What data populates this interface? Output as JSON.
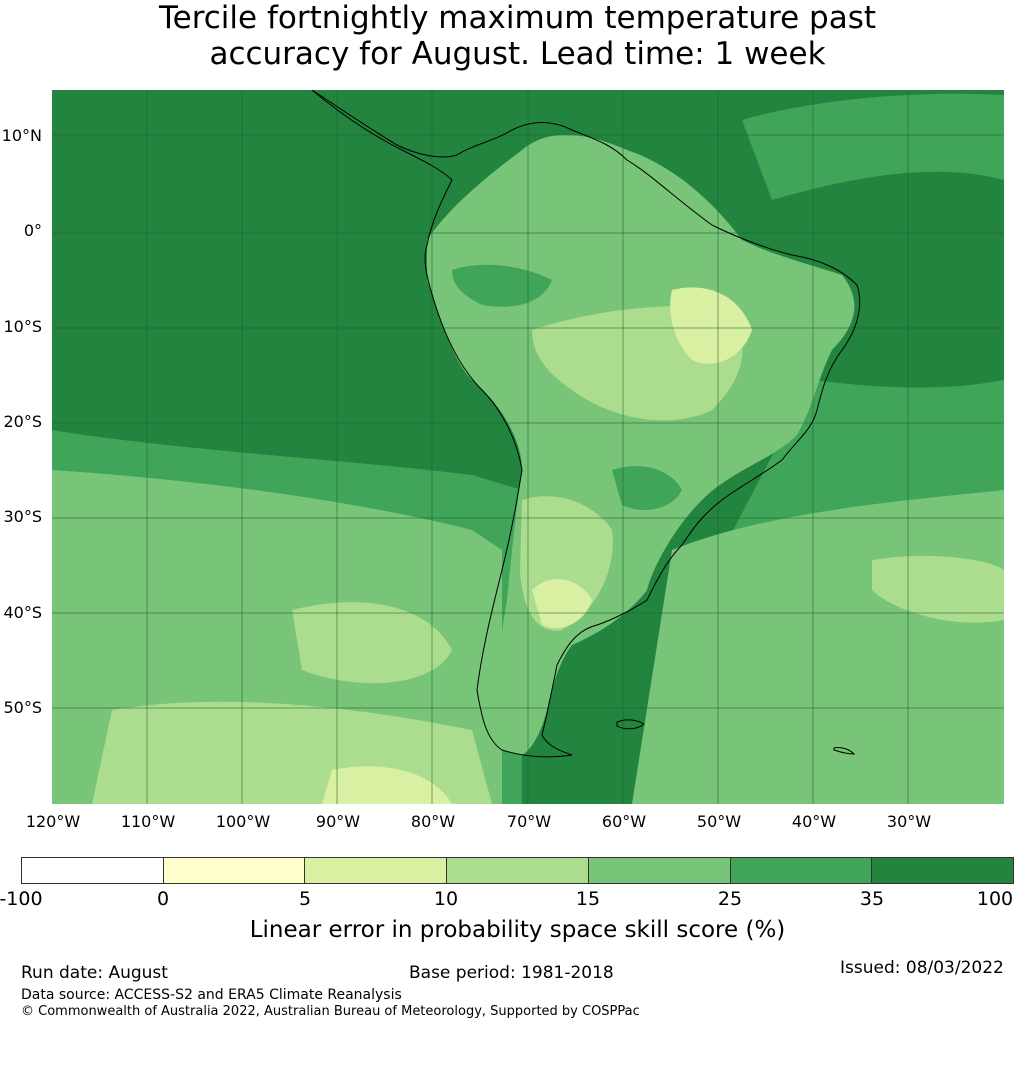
{
  "title": {
    "line1": "Tercile fortnightly maximum temperature past",
    "line2": "accuracy for August. Lead time: 1 week"
  },
  "map": {
    "region": "South America",
    "lat_labels": [
      "10°N",
      "0°",
      "10°S",
      "20°S",
      "30°S",
      "40°S",
      "50°S"
    ],
    "lon_labels": [
      "120°W",
      "110°W",
      "100°W",
      "90°W",
      "80°W",
      "70°W",
      "60°W",
      "50°W",
      "40°W",
      "30°W"
    ],
    "colors": {
      "class_35_100": "#23843f",
      "class_25_35": "#40a559",
      "class_15_25": "#78c479",
      "class_10_15": "#acdc8e",
      "class_5_10": "#d9f0a3",
      "class_0_5": "#ffffcc",
      "coastline": "#000000"
    }
  },
  "colorbar": {
    "ticks": [
      "-100",
      "0",
      "5",
      "10",
      "15",
      "25",
      "35",
      "100"
    ],
    "colors": [
      "#ffffff",
      "#ffffcc",
      "#d9f0a3",
      "#acdc8e",
      "#78c479",
      "#40a559",
      "#23843f"
    ],
    "label": "Linear error in probability space skill score (%)"
  },
  "footer": {
    "run_date": "Run date: August",
    "base_period": "Base period: 1981-2018",
    "issued": "Issued: 08/03/2022",
    "data_source": "Data source: ACCESS-S2 and ERA5 Climate Reanalysis",
    "copyright": "© Commonwealth of Australia 2022, Australian Bureau of Meteorology, Supported by COSPPac"
  }
}
